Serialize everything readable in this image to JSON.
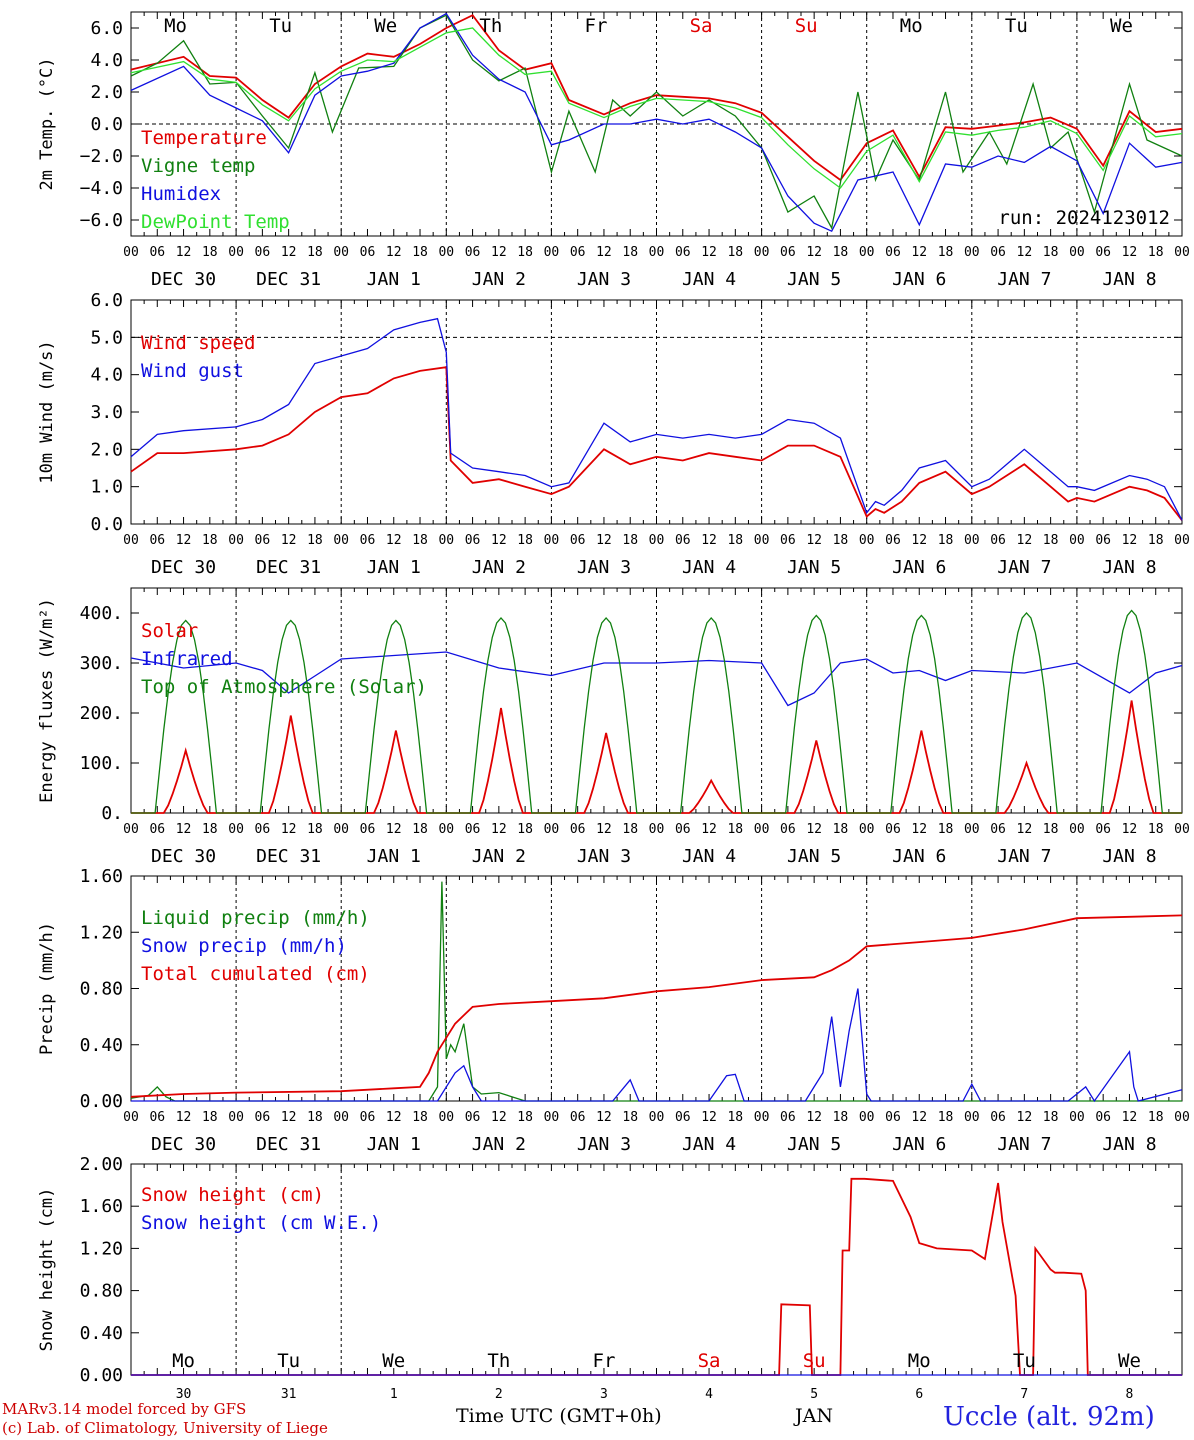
{
  "footer": {
    "credit_line1": "MARv3.14 model forced by GFS",
    "credit_line2": "(c) Lab. of Climatology, University of Liege",
    "time_label": "Time UTC (GMT+0h)",
    "month": "JAN",
    "station": "Uccle (alt. 92m)"
  },
  "colors": {
    "red": "#e00000",
    "green": "#108010",
    "blue": "#1010e0",
    "light_green": "#30e030"
  },
  "chart_data": [
    {
      "type": "line",
      "ylabel": "2m Temp. (°C)",
      "ylim": [
        -7,
        7
      ],
      "yticks": [
        "6.0",
        "4.0",
        "2.0",
        "0.0",
        "−2.0",
        "−4.0",
        "−6.0"
      ],
      "ytick_values": [
        6,
        4,
        2,
        0,
        -2,
        -4,
        -6
      ],
      "dashed_y": 0,
      "day_labels": [
        "Mo",
        "Tu",
        "We",
        "Th",
        "Fr",
        "Sa",
        "Su",
        "Mo",
        "Tu",
        "We"
      ],
      "weekend_days": [
        "Sa",
        "Su"
      ],
      "hour_ticks": [
        "00",
        "06",
        "12",
        "18"
      ],
      "date_labels": [
        "DEC 30",
        "DEC 31",
        "JAN 1",
        "JAN 2",
        "JAN 3",
        "JAN 4",
        "JAN 5",
        "JAN 6",
        "JAN 7",
        "JAN 8"
      ],
      "run_label": "run: 2024123012",
      "x_unit": "hours since 2024-12-30 00 UTC",
      "series": [
        {
          "name": "Temperature",
          "color": "red",
          "x": [
            0,
            12,
            18,
            24,
            30,
            36,
            42,
            48,
            54,
            60,
            66,
            72,
            78,
            84,
            90,
            96,
            100,
            108,
            114,
            120,
            126,
            132,
            138,
            144,
            150,
            156,
            162,
            168,
            174,
            180,
            186,
            192,
            198,
            204,
            210,
            216,
            222,
            228,
            234,
            240
          ],
          "y": [
            3.4,
            4.2,
            3.0,
            2.9,
            1.5,
            0.4,
            2.5,
            3.6,
            4.4,
            4.2,
            5.0,
            6.0,
            6.8,
            4.6,
            3.4,
            3.8,
            1.5,
            0.6,
            1.3,
            1.8,
            1.7,
            1.6,
            1.3,
            0.7,
            -0.8,
            -2.3,
            -3.5,
            -1.2,
            -0.4,
            -3.3,
            -0.2,
            -0.3,
            -0.1,
            0.1,
            0.4,
            -0.3,
            -2.6,
            0.8,
            -0.5,
            -0.3
          ]
        },
        {
          "name": "Vigne temp",
          "color": "green",
          "x": [
            0,
            6,
            12,
            18,
            24,
            30,
            36,
            42,
            46,
            52,
            60,
            66,
            72,
            78,
            84,
            90,
            96,
            100,
            106,
            110,
            114,
            120,
            126,
            132,
            138,
            144,
            150,
            156,
            160,
            166,
            170,
            174,
            180,
            186,
            190,
            196,
            200,
            206,
            210,
            214,
            220,
            224,
            228,
            232,
            240
          ],
          "y": [
            3.0,
            3.8,
            5.2,
            2.5,
            2.6,
            0.5,
            -1.5,
            3.2,
            -0.5,
            3.5,
            3.6,
            6.0,
            6.8,
            4.0,
            2.7,
            3.5,
            -3.0,
            0.8,
            -3.0,
            1.5,
            0.5,
            2.0,
            0.5,
            1.5,
            0.5,
            -1.5,
            -5.5,
            -4.5,
            -6.5,
            2.0,
            -3.5,
            -1.0,
            -3.5,
            2.0,
            -3.0,
            -0.5,
            -2.5,
            2.5,
            -1.5,
            -0.5,
            -5.5,
            -1.5,
            2.5,
            -1.0,
            -2.0
          ]
        },
        {
          "name": "Humidex",
          "color": "blue",
          "x": [
            0,
            12,
            18,
            24,
            30,
            36,
            42,
            48,
            54,
            60,
            66,
            72,
            78,
            84,
            90,
            96,
            100,
            108,
            114,
            120,
            126,
            132,
            138,
            144,
            150,
            156,
            160,
            166,
            174,
            180,
            186,
            192,
            198,
            204,
            210,
            216,
            222,
            228,
            234,
            240
          ],
          "y": [
            2.1,
            3.6,
            1.8,
            1.0,
            0.2,
            -1.8,
            1.8,
            3.0,
            3.3,
            3.8,
            6.0,
            6.9,
            4.3,
            2.8,
            2.0,
            -1.3,
            -1.0,
            0.0,
            0.0,
            0.3,
            0.0,
            0.3,
            -0.5,
            -1.5,
            -4.5,
            -6.2,
            -6.7,
            -3.5,
            -3.0,
            -6.3,
            -2.5,
            -2.7,
            -2.0,
            -2.4,
            -1.4,
            -2.3,
            -5.6,
            -1.2,
            -2.7,
            -2.4
          ]
        },
        {
          "name": "DewPoint Temp",
          "color": "light_green",
          "x": [
            0,
            12,
            18,
            24,
            30,
            36,
            42,
            48,
            54,
            60,
            66,
            72,
            78,
            84,
            90,
            96,
            100,
            108,
            114,
            120,
            126,
            132,
            138,
            144,
            150,
            156,
            162,
            168,
            174,
            180,
            186,
            192,
            198,
            204,
            210,
            216,
            222,
            228,
            234,
            240
          ],
          "y": [
            3.2,
            3.9,
            2.8,
            2.6,
            1.2,
            0.2,
            2.2,
            3.3,
            4.0,
            3.9,
            4.8,
            5.7,
            6.0,
            4.3,
            3.1,
            3.3,
            1.3,
            0.4,
            1.1,
            1.6,
            1.5,
            1.4,
            1.0,
            0.4,
            -1.3,
            -2.8,
            -4.0,
            -1.7,
            -0.7,
            -3.6,
            -0.5,
            -0.7,
            -0.4,
            -0.2,
            0.2,
            -0.6,
            -2.9,
            0.5,
            -0.8,
            -0.6
          ]
        }
      ]
    },
    {
      "type": "line",
      "ylabel": "10m Wind (m/s)",
      "ylim": [
        0,
        6
      ],
      "yticks": [
        "6.0",
        "5.0",
        "4.0",
        "3.0",
        "2.0",
        "1.0",
        "0.0"
      ],
      "ytick_values": [
        6,
        5,
        4,
        3,
        2,
        1,
        0
      ],
      "dashed_y": 5,
      "series": [
        {
          "name": "Wind speed",
          "color": "red",
          "x": [
            0,
            6,
            12,
            24,
            30,
            36,
            42,
            48,
            54,
            60,
            66,
            72,
            73,
            78,
            84,
            90,
            96,
            100,
            108,
            114,
            120,
            126,
            132,
            138,
            144,
            150,
            156,
            162,
            168,
            170,
            172,
            176,
            180,
            186,
            192,
            196,
            204,
            208,
            214,
            216,
            220,
            228,
            232,
            236,
            240
          ],
          "y": [
            1.4,
            1.9,
            1.9,
            2.0,
            2.1,
            2.4,
            3.0,
            3.4,
            3.5,
            3.9,
            4.1,
            4.2,
            1.7,
            1.1,
            1.2,
            1.0,
            0.8,
            1.0,
            2.0,
            1.6,
            1.8,
            1.7,
            1.9,
            1.8,
            1.7,
            2.1,
            2.1,
            1.8,
            0.2,
            0.4,
            0.3,
            0.6,
            1.1,
            1.4,
            0.8,
            1.0,
            1.6,
            1.2,
            0.6,
            0.7,
            0.6,
            1.0,
            0.9,
            0.7,
            0.1
          ]
        },
        {
          "name": "Wind gust",
          "color": "blue",
          "x": [
            0,
            6,
            12,
            24,
            30,
            36,
            42,
            48,
            54,
            60,
            66,
            70,
            72,
            73,
            78,
            84,
            90,
            96,
            100,
            108,
            114,
            120,
            126,
            132,
            138,
            144,
            150,
            156,
            162,
            168,
            170,
            172,
            176,
            180,
            186,
            192,
            196,
            204,
            208,
            214,
            216,
            220,
            228,
            232,
            236,
            240
          ],
          "y": [
            1.8,
            2.4,
            2.5,
            2.6,
            2.8,
            3.2,
            4.3,
            4.5,
            4.7,
            5.2,
            5.4,
            5.5,
            4.6,
            1.9,
            1.5,
            1.4,
            1.3,
            1.0,
            1.1,
            2.7,
            2.2,
            2.4,
            2.3,
            2.4,
            2.3,
            2.4,
            2.8,
            2.7,
            2.3,
            0.3,
            0.6,
            0.5,
            0.9,
            1.5,
            1.7,
            1.0,
            1.2,
            2.0,
            1.6,
            1.0,
            1.0,
            0.9,
            1.3,
            1.2,
            1.0,
            0.1
          ]
        }
      ]
    },
    {
      "type": "line",
      "ylabel": "Energy fluxes (W/m²)",
      "ylim": [
        0,
        450
      ],
      "yticks": [
        "400.",
        "300.",
        "200.",
        "100.",
        "0."
      ],
      "ytick_values": [
        400,
        300,
        200,
        100,
        0
      ],
      "series": [
        {
          "name": "Solar",
          "color": "red",
          "peaks": [
            125,
            195,
            165,
            210,
            160,
            65,
            145,
            165,
            100,
            225
          ]
        },
        {
          "name": "Infrared",
          "color": "blue",
          "x": [
            0,
            12,
            24,
            30,
            36,
            48,
            60,
            72,
            84,
            96,
            108,
            120,
            132,
            144,
            150,
            156,
            162,
            168,
            174,
            180,
            186,
            192,
            204,
            216,
            228,
            234,
            240
          ],
          "y": [
            310,
            290,
            300,
            285,
            240,
            308,
            315,
            322,
            290,
            275,
            300,
            300,
            305,
            300,
            215,
            240,
            300,
            308,
            280,
            285,
            265,
            285,
            280,
            300,
            240,
            280,
            295
          ]
        },
        {
          "name": "Top of Atmosphere (Solar)",
          "color": "green",
          "peaks": [
            385,
            385,
            385,
            390,
            390,
            390,
            395,
            395,
            400,
            405
          ]
        }
      ]
    },
    {
      "type": "line",
      "ylabel": "Precip (mm/h)",
      "ylim": [
        0,
        1.6
      ],
      "yticks": [
        "1.60",
        "1.20",
        "0.80",
        "0.40",
        "0.00"
      ],
      "ytick_values": [
        1.6,
        1.2,
        0.8,
        0.4,
        0.0
      ],
      "series": [
        {
          "name": "Liquid precip (mm/h)",
          "color": "green",
          "x": [
            0,
            4,
            6,
            8,
            10,
            24,
            60,
            68,
            70,
            71,
            72,
            73,
            74,
            76,
            78,
            80,
            84,
            90,
            100,
            240
          ],
          "y": [
            0.02,
            0.04,
            0.1,
            0.03,
            0.0,
            0.0,
            0.0,
            0.0,
            0.1,
            1.56,
            0.3,
            0.4,
            0.35,
            0.55,
            0.1,
            0.05,
            0.06,
            0.0,
            0.0,
            0.0
          ]
        },
        {
          "name": "Snow precip (mm/h)",
          "color": "blue",
          "x": [
            0,
            70,
            74,
            76,
            78,
            80,
            84,
            96,
            110,
            114,
            116,
            120,
            132,
            136,
            138,
            140,
            154,
            156,
            158,
            160,
            162,
            164,
            166,
            168,
            169,
            170,
            190,
            192,
            194,
            214,
            216,
            218,
            220,
            228,
            229,
            230,
            240
          ],
          "y": [
            0.0,
            0.0,
            0.2,
            0.25,
            0.1,
            0.0,
            0.0,
            0.0,
            0.0,
            0.15,
            0.0,
            0.0,
            0.0,
            0.18,
            0.19,
            0.0,
            0.0,
            0.1,
            0.2,
            0.6,
            0.1,
            0.5,
            0.8,
            0.05,
            0.0,
            0.0,
            0.0,
            0.12,
            0.0,
            0.0,
            0.05,
            0.1,
            0.0,
            0.35,
            0.1,
            0.0,
            0.08
          ]
        },
        {
          "name": "Total cumulated (cm)",
          "color": "red",
          "x": [
            0,
            12,
            24,
            48,
            60,
            66,
            68,
            70,
            72,
            74,
            78,
            84,
            96,
            108,
            120,
            132,
            144,
            156,
            160,
            164,
            168,
            180,
            192,
            204,
            216,
            228,
            240
          ],
          "y": [
            0.03,
            0.05,
            0.06,
            0.07,
            0.09,
            0.1,
            0.2,
            0.35,
            0.45,
            0.55,
            0.67,
            0.69,
            0.71,
            0.73,
            0.78,
            0.81,
            0.86,
            0.88,
            0.93,
            1.0,
            1.1,
            1.13,
            1.16,
            1.22,
            1.3,
            1.31,
            1.32
          ]
        }
      ]
    },
    {
      "type": "line",
      "ylabel": "Snow height (cm)",
      "ylim": [
        0,
        2
      ],
      "yticks": [
        "2.00",
        "1.60",
        "1.20",
        "0.80",
        "0.40",
        "0.00"
      ],
      "ytick_values": [
        2.0,
        1.6,
        1.2,
        0.8,
        0.4,
        0.0
      ],
      "day_labels_inside": [
        "Mo",
        "Tu",
        "We",
        "Th",
        "Fr",
        "Sa",
        "Su",
        "Mo",
        "Tu",
        "We"
      ],
      "day_numbers": [
        "30",
        "31",
        "1",
        "2",
        "3",
        "4",
        "5",
        "6",
        "7",
        "8"
      ],
      "series": [
        {
          "name": "Snow height (cm)",
          "color": "red",
          "x": [
            0,
            148,
            148.5,
            155,
            155.5,
            156,
            162,
            162.5,
            164,
            164.5,
            167,
            167.5,
            174,
            178,
            180,
            184,
            192,
            195,
            198,
            199,
            202,
            203,
            206,
            206.5,
            210,
            211,
            211.5,
            213,
            217,
            218,
            218.5,
            240
          ],
          "y": [
            0,
            0,
            0.67,
            0.66,
            0,
            0,
            0,
            1.18,
            1.18,
            1.86,
            1.86,
            1.86,
            1.84,
            1.5,
            1.25,
            1.2,
            1.18,
            1.1,
            1.82,
            1.45,
            0.75,
            0,
            0,
            1.2,
            1.0,
            0.97,
            0.97,
            0.97,
            0.96,
            0.8,
            0,
            0
          ]
        },
        {
          "name": "Snow height (cm W.E.)",
          "color": "blue",
          "x": [
            0,
            240
          ],
          "y": [
            0,
            0
          ]
        }
      ]
    }
  ]
}
